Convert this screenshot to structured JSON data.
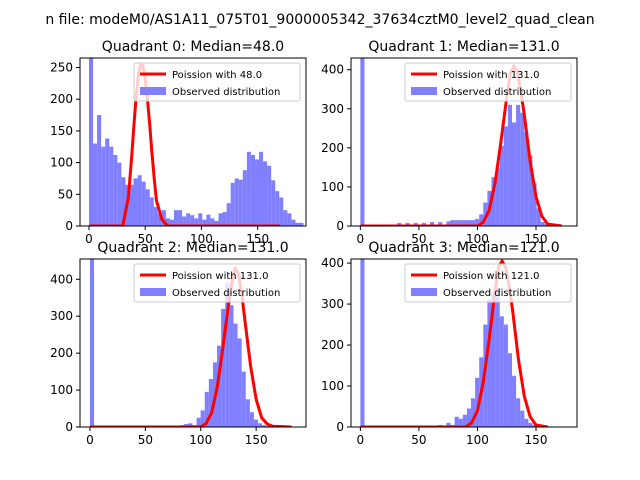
{
  "figure": {
    "suptitle": "n file: modeM0/AS1A11_075T01_9000005342_37634cztM0_level2_quad_clean"
  },
  "colors": {
    "observed": "#7f7fff",
    "poisson": "#ff0000",
    "axis": "#000000",
    "background": "#ffffff"
  },
  "chart_data": [
    {
      "type": "bar",
      "title": "Quadrant 0: Median=48.0",
      "xlim": [
        -8,
        193
      ],
      "ylim": [
        0,
        265
      ],
      "xticks": [
        0,
        50,
        100,
        150
      ],
      "yticks": [
        0,
        50,
        100,
        150,
        200,
        250
      ],
      "legend": "top-right",
      "legend_entries": [
        "Poission with 48.0",
        "Observed distribution"
      ],
      "bin_width": 3.6,
      "hist": [
        265,
        130,
        175,
        125,
        138,
        125,
        112,
        100,
        77,
        65,
        65,
        75,
        80,
        70,
        58,
        45,
        30,
        20,
        25,
        12,
        10,
        25,
        25,
        15,
        20,
        17,
        12,
        20,
        10,
        18,
        12,
        8,
        20,
        22,
        36,
        68,
        75,
        73,
        88,
        117,
        112,
        105,
        117,
        102,
        95,
        72,
        55,
        45,
        25,
        20,
        10,
        5,
        5
      ],
      "poisson": {
        "name": "Poission with 48.0",
        "x": [
          0,
          30,
          35,
          38,
          40,
          42,
          44,
          46,
          48,
          50,
          52,
          54,
          56,
          58,
          60,
          65,
          70,
          170
        ],
        "y": [
          0,
          0,
          45,
          110,
          160,
          205,
          240,
          255,
          253,
          232,
          200,
          160,
          115,
          75,
          40,
          10,
          0,
          0
        ]
      }
    },
    {
      "type": "bar",
      "title": "Quadrant 1: Median=131.0",
      "xlim": [
        -8,
        185
      ],
      "ylim": [
        0,
        430
      ],
      "xticks": [
        0,
        50,
        100,
        150
      ],
      "yticks": [
        0,
        100,
        200,
        300,
        400
      ],
      "legend": "top-right",
      "legend_entries": [
        "Poission with 131.0",
        "Observed distribution"
      ],
      "bin_start": 0,
      "bin_width": 3.5,
      "hist": [
        430,
        0,
        0,
        0,
        0,
        0,
        0,
        0,
        0,
        8,
        0,
        8,
        0,
        8,
        0,
        8,
        0,
        10,
        0,
        10,
        0,
        12,
        15,
        15,
        15,
        15,
        15,
        15,
        18,
        30,
        60,
        90,
        125,
        150,
        205,
        255,
        310,
        265,
        310,
        290,
        240,
        180,
        110,
        45,
        10,
        5,
        3,
        2,
        2
      ],
      "poisson": {
        "name": "Poission with 131.0",
        "x": [
          0,
          100,
          105,
          110,
          115,
          120,
          125,
          128,
          131,
          134,
          137,
          140,
          145,
          150,
          155,
          160,
          172
        ],
        "y": [
          0,
          0,
          10,
          40,
          110,
          215,
          330,
          390,
          410,
          395,
          345,
          285,
          165,
          75,
          25,
          5,
          0
        ]
      }
    },
    {
      "type": "bar",
      "title": "Quadrant 2: Median=131.0",
      "xlim": [
        -9,
        195
      ],
      "ylim": [
        0,
        455
      ],
      "xticks": [
        0,
        50,
        100,
        150
      ],
      "yticks": [
        0,
        100,
        200,
        300,
        400
      ],
      "legend": "top-right",
      "legend_entries": [
        "Poission with 131.0",
        "Observed distribution"
      ],
      "bin_start": 0,
      "bin_width": 3.7,
      "hist": [
        455,
        0,
        0,
        0,
        0,
        0,
        0,
        0,
        0,
        0,
        0,
        0,
        0,
        0,
        0,
        0,
        0,
        0,
        0,
        0,
        0,
        0,
        5,
        8,
        10,
        5,
        25,
        45,
        95,
        130,
        175,
        220,
        320,
        390,
        330,
        280,
        240,
        150,
        75,
        40,
        20,
        10,
        5,
        3,
        2,
        2
      ],
      "poisson": {
        "name": "Poission with 131.0",
        "x": [
          0,
          100,
          105,
          110,
          115,
          120,
          125,
          128,
          131,
          134,
          137,
          140,
          145,
          150,
          155,
          160,
          165,
          182
        ],
        "y": [
          0,
          0,
          10,
          40,
          110,
          215,
          330,
          390,
          430,
          415,
          360,
          285,
          165,
          75,
          25,
          8,
          2,
          0
        ]
      }
    },
    {
      "type": "bar",
      "title": "Quadrant 3: Median=121.0",
      "xlim": [
        -8,
        185
      ],
      "ylim": [
        0,
        410
      ],
      "xticks": [
        0,
        50,
        100,
        150
      ],
      "yticks": [
        0,
        100,
        200,
        300,
        400
      ],
      "legend": "top-right",
      "legend_entries": [
        "Poission with 121.0",
        "Observed distribution"
      ],
      "bin_start": 0,
      "bin_width": 3.5,
      "hist": [
        410,
        0,
        0,
        0,
        0,
        0,
        0,
        0,
        0,
        0,
        0,
        0,
        0,
        0,
        0,
        0,
        0,
        0,
        0,
        5,
        0,
        10,
        5,
        25,
        20,
        30,
        45,
        70,
        120,
        170,
        250,
        310,
        330,
        340,
        270,
        250,
        180,
        125,
        70,
        40,
        20,
        10,
        5,
        3,
        2,
        2
      ],
      "poisson": {
        "name": "Poission with 121.0",
        "x": [
          0,
          90,
          95,
          100,
          105,
          110,
          115,
          118,
          121,
          124,
          127,
          130,
          135,
          140,
          145,
          150,
          160
        ],
        "y": [
          0,
          0,
          10,
          40,
          110,
          215,
          330,
          390,
          405,
          390,
          345,
          285,
          165,
          75,
          25,
          5,
          0
        ]
      }
    }
  ]
}
